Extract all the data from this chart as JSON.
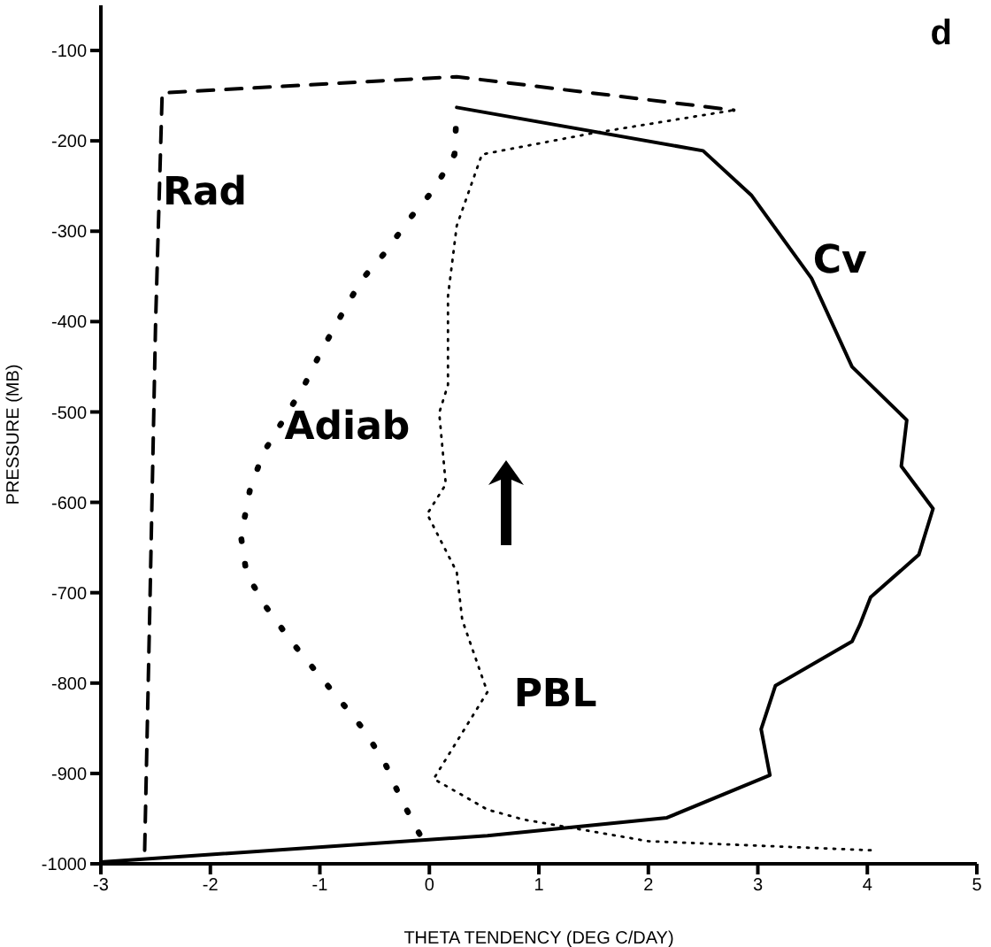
{
  "chart_data": {
    "type": "line",
    "xlabel": "THETA TENDENCY (DEG C/DAY)",
    "ylabel": "PRESSURE (MB)",
    "xlim": [
      -3,
      5
    ],
    "ylim": [
      -1000,
      -50
    ],
    "xticks": [
      -3,
      -2,
      -1,
      0,
      1,
      2,
      3,
      4,
      5
    ],
    "yticks": [
      -1000,
      -900,
      -800,
      -700,
      -600,
      -500,
      -400,
      -300,
      -200,
      -100
    ],
    "grid": false,
    "legend": false,
    "marker": "none",
    "annotations": [
      "d"
    ],
    "series": [
      {
        "name": "Rad",
        "color": "#000000",
        "line_style": "dashed",
        "x": [
          -2.6,
          -2.55,
          -2.5,
          -2.44,
          0.25,
          2.78
        ],
        "values": [
          -985,
          -700,
          -400,
          -147,
          -129,
          -166
        ]
      },
      {
        "name": "Adiab",
        "color": "#000000",
        "line_style": "dotted",
        "x": [
          -0.09,
          -0.26,
          -0.4,
          -0.59,
          -0.81,
          -1.05,
          -1.26,
          -1.49,
          -1.67,
          -1.72,
          -1.64,
          -1.52,
          -1.14,
          -0.98,
          -0.81,
          -0.62,
          -0.4,
          -0.18,
          0.04,
          0.23,
          0.25
        ],
        "values": [
          -967,
          -928,
          -890,
          -853,
          -820,
          -785,
          -754,
          -716,
          -679,
          -638,
          -587,
          -546,
          -470,
          -431,
          -394,
          -354,
          -323,
          -286,
          -254,
          -215,
          -166
        ]
      },
      {
        "name": "Cv",
        "color": "#000000",
        "line_style": "solid",
        "x": [
          -3,
          0.53,
          2.17,
          3.11,
          3.03,
          3.16,
          3.86,
          3.93,
          4.03,
          4.47,
          4.6,
          4.31,
          4.36,
          3.86,
          3.49,
          2.94,
          2.5,
          0.25
        ],
        "values": [
          -998,
          -969,
          -949,
          -902,
          -851,
          -803,
          -754,
          -736,
          -705,
          -658,
          -607,
          -560,
          -509,
          -450,
          -352,
          -260,
          -211,
          -163
        ]
      },
      {
        "name": "PBL",
        "color": "#000000",
        "line_style": "dotted",
        "x": [
          4.03,
          2.0,
          0.86,
          0.53,
          0.04,
          0.53,
          0.3,
          0.25,
          -0.02,
          0.15,
          0.09,
          0.17,
          0.17,
          0.25,
          0.48,
          1.47,
          2.78
        ],
        "values": [
          -985,
          -975,
          -951,
          -940,
          -906,
          -810,
          -730,
          -677,
          -613,
          -580,
          -501,
          -470,
          -372,
          -294,
          -215,
          -192,
          -166
        ]
      }
    ]
  }
}
